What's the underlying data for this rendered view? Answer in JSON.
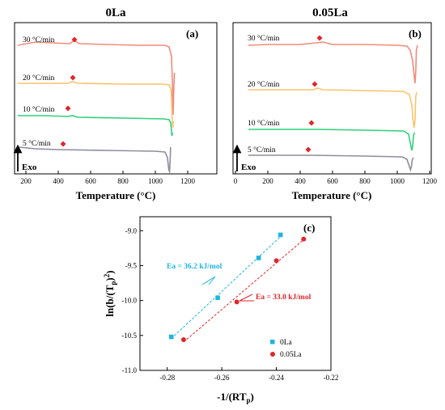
{
  "panel_a": {
    "title": "0La",
    "label": "(a)",
    "xlabel": "Temperature (°C)",
    "xticks": [
      "200",
      "400",
      "600",
      "800",
      "1000",
      "1200"
    ],
    "exo_label": "Exo",
    "curves": [
      {
        "label": "30 °C/min",
        "color": "#f08c7c"
      },
      {
        "label": "20 °C/min",
        "color": "#f9c36a"
      },
      {
        "label": "10 °C/min",
        "color": "#2fd07a"
      },
      {
        "label": "5 °C/min",
        "color": "#8d8d9e"
      }
    ]
  },
  "panel_b": {
    "title": "0.05La",
    "label": "(b)",
    "xlabel": "Temperature (°C)",
    "xticks": [
      "0",
      "200",
      "400",
      "600",
      "800",
      "1000",
      "1200"
    ],
    "exo_label": "Exo",
    "curves": [
      {
        "label": "30 °C/min",
        "color": "#f08c7c"
      },
      {
        "label": "20 °C/min",
        "color": "#f9c36a"
      },
      {
        "label": "10 °C/min",
        "color": "#2fd07a"
      },
      {
        "label": "5 °C/min",
        "color": "#8d8d9e"
      }
    ]
  },
  "panel_c": {
    "label": "(c)",
    "xticks": [
      "-0.28",
      "-0.26",
      "-0.24",
      "-0.22"
    ],
    "yticks": [
      "-9.0",
      "-9.5",
      "-10.0",
      "-10.5",
      "-11.0"
    ],
    "ea_0la": "Ea = 36.2 kJ/mol",
    "ea_005la": "Ea = 33.0 kJ/mol"
  },
  "chart_data": [
    {
      "type": "line",
      "panel": "a",
      "title": "0La",
      "xlabel": "Temperature (°C)",
      "xlim": [
        150,
        1200
      ],
      "series": [
        {
          "name": "30 °C/min",
          "peak_marker_x": 500
        },
        {
          "name": "20 °C/min",
          "peak_marker_x": 490
        },
        {
          "name": "10 °C/min",
          "peak_marker_x": 460
        },
        {
          "name": "5 °C/min",
          "peak_marker_x": 430
        }
      ]
    },
    {
      "type": "line",
      "panel": "b",
      "title": "0.05La",
      "xlabel": "Temperature (°C)",
      "xlim": [
        0,
        1200
      ],
      "series": [
        {
          "name": "30 °C/min",
          "peak_marker_x": 520
        },
        {
          "name": "20 °C/min",
          "peak_marker_x": 490
        },
        {
          "name": "10 °C/min",
          "peak_marker_x": 470
        },
        {
          "name": "5 °C/min",
          "peak_marker_x": 450
        }
      ]
    },
    {
      "type": "scatter",
      "panel": "c",
      "xlabel": "-1/(RTp)",
      "ylabel": "ln(b/(Tp)2)",
      "xlim": [
        -0.29,
        -0.22
      ],
      "ylim": [
        -11.0,
        -8.8
      ],
      "legend_position": "bottom-right",
      "series": [
        {
          "name": "0La",
          "color": "#1eb4e0",
          "marker": "square",
          "x": [
            -0.2785,
            -0.2615,
            -0.2465,
            -0.2385
          ],
          "y": [
            -10.52,
            -9.96,
            -9.39,
            -9.06
          ],
          "annotation": "Ea = 36.2 kJ/mol"
        },
        {
          "name": "0.05La",
          "color": "#e0262b",
          "marker": "circle",
          "x": [
            -0.274,
            -0.2545,
            -0.24,
            -0.23
          ],
          "y": [
            -10.56,
            -10.02,
            -9.43,
            -9.12
          ],
          "annotation": "Ea = 33.0 kJ/mol"
        }
      ]
    }
  ]
}
